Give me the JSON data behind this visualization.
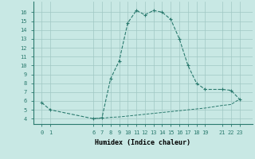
{
  "upper_x": [
    0,
    1,
    6,
    7,
    8,
    9,
    10,
    11,
    12,
    13,
    14,
    15,
    16,
    17,
    18,
    19,
    21,
    22,
    23
  ],
  "upper_y": [
    5.8,
    5.0,
    4.0,
    4.1,
    8.5,
    10.5,
    14.8,
    16.2,
    15.7,
    16.2,
    16.0,
    15.2,
    13.0,
    10.0,
    8.0,
    7.3,
    7.3,
    7.2,
    6.2
  ],
  "lower_x": [
    6,
    7,
    8,
    9,
    10,
    11,
    12,
    13,
    14,
    15,
    16,
    17,
    18,
    19,
    21,
    22,
    23
  ],
  "lower_y": [
    4.0,
    4.05,
    4.15,
    4.2,
    4.3,
    4.4,
    4.5,
    4.6,
    4.7,
    4.8,
    4.9,
    5.0,
    5.1,
    5.2,
    5.5,
    5.6,
    6.2
  ],
  "line_color": "#2a7a6e",
  "bg_color": "#c8e8e4",
  "grid_color": "#a0c8c4",
  "xlabel": "Humidex (Indice chaleur)",
  "xticks": [
    0,
    1,
    6,
    7,
    8,
    9,
    10,
    11,
    12,
    13,
    14,
    15,
    16,
    17,
    18,
    19,
    21,
    22,
    23
  ],
  "yticks": [
    4,
    5,
    6,
    7,
    8,
    9,
    10,
    11,
    12,
    13,
    14,
    15,
    16
  ],
  "xlim": [
    -1.0,
    24.5
  ],
  "ylim": [
    3.4,
    17.2
  ]
}
